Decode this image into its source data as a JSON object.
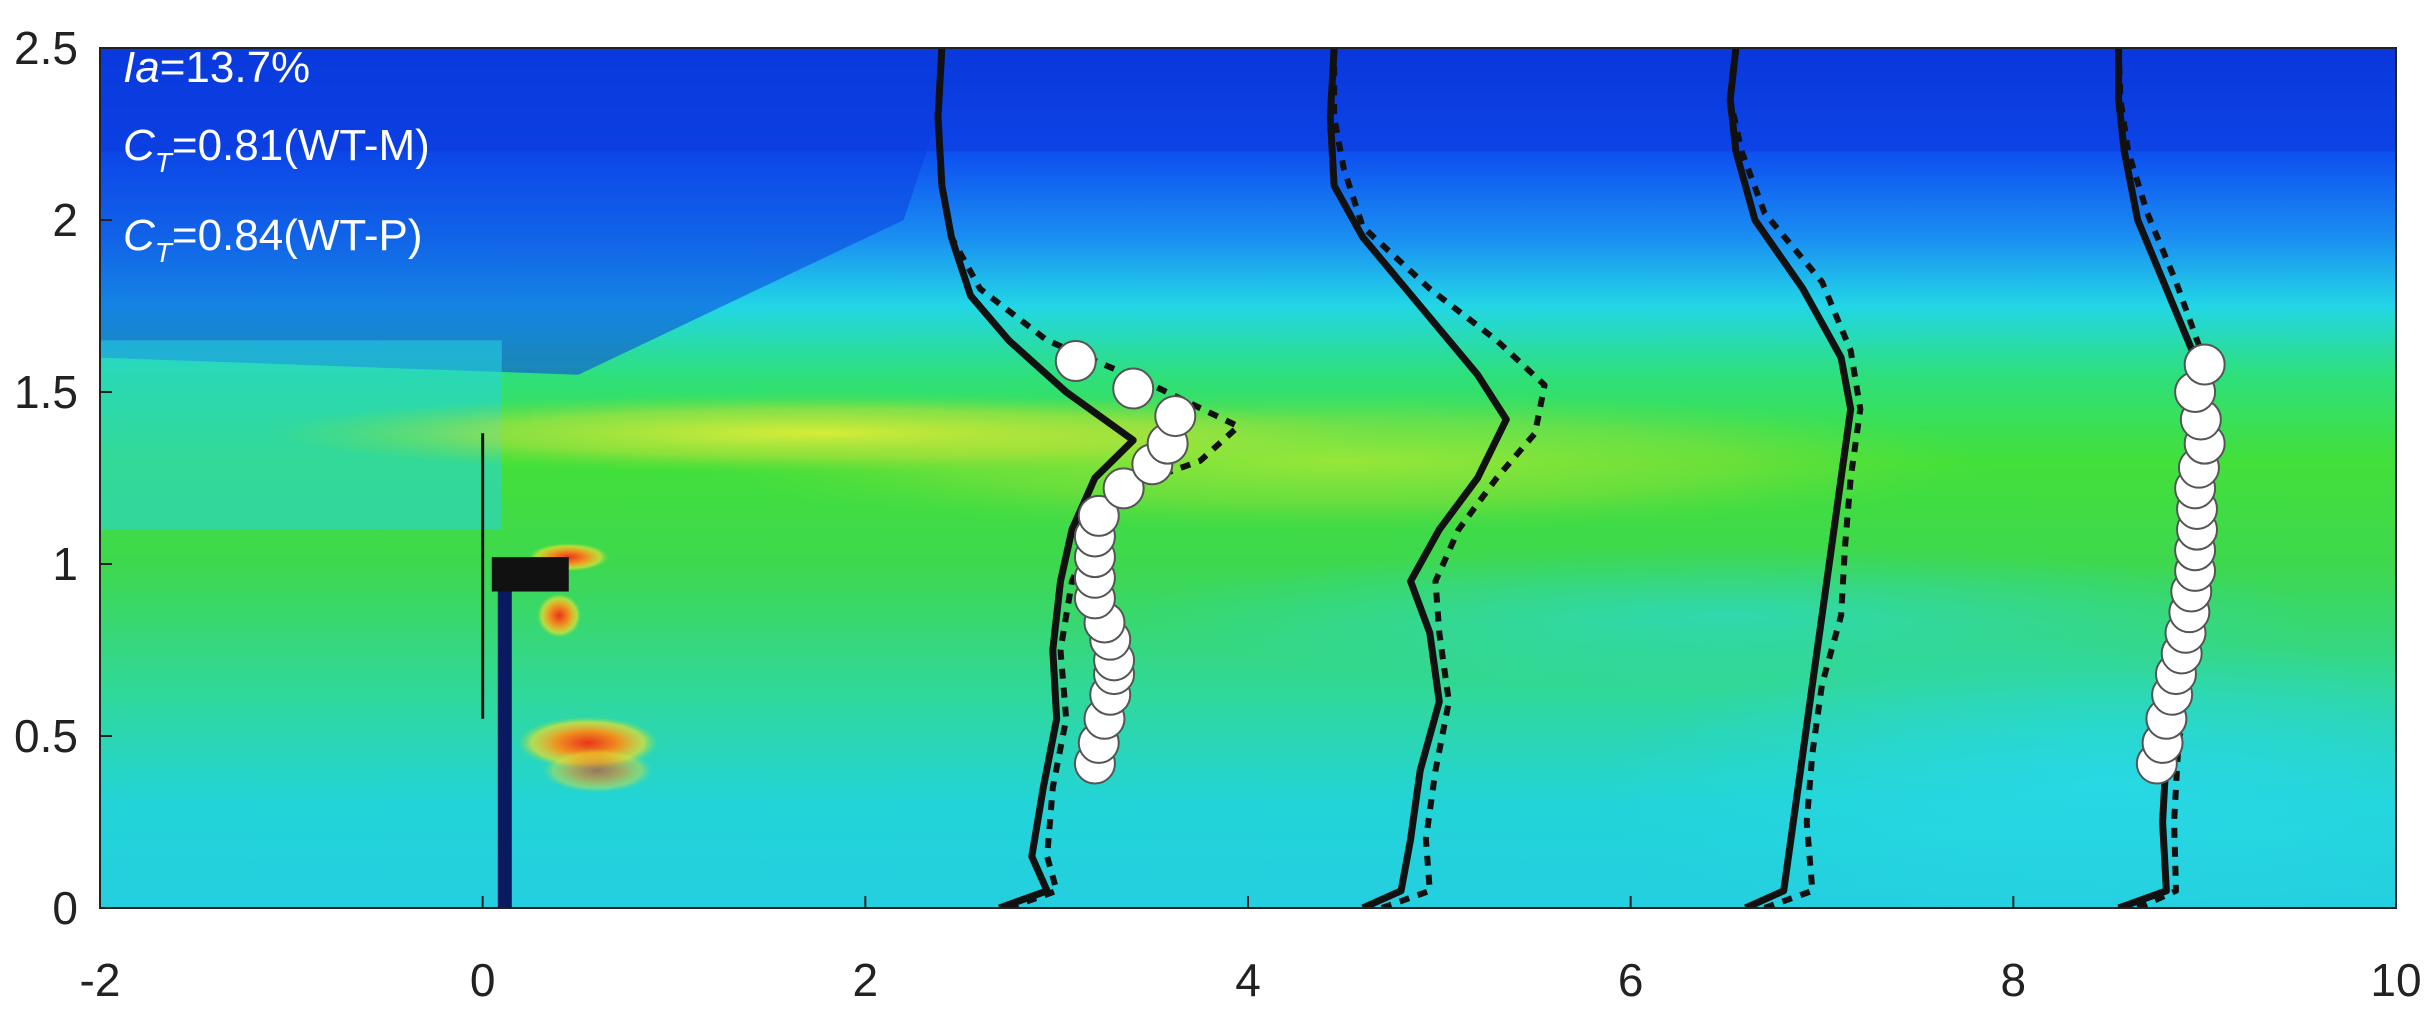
{
  "chart_data": {
    "type": "heatmap",
    "xlim": [
      -2,
      10
    ],
    "ylim": [
      0,
      2.5
    ],
    "x_ticks": [
      -2,
      0,
      2,
      4,
      6,
      8,
      10
    ],
    "y_ticks": [
      0,
      0.5,
      1,
      1.5,
      2,
      2.5
    ],
    "x_tick_labels": [
      "-2",
      "0",
      "2",
      "4",
      "6",
      "8",
      "10"
    ],
    "y_tick_labels": [
      "0",
      "0.5",
      "1",
      "1.5",
      "2",
      "2.5"
    ],
    "annotations": {
      "ia_symbol": "Ia",
      "ia_value": "=13.7%",
      "ct_symbol": "C",
      "ct_subscript": "T",
      "ct1_value": "=0.81(WT-M)",
      "ct2_value": "=0.84(WT-P)"
    },
    "colors": {
      "field_low": "#0b3fe0",
      "field_cyan": "#22d8e8",
      "field_green": "#1ed84a",
      "field_yellow": "#d8e430",
      "field_red": "#e83a1a",
      "line": "#111111",
      "marker_fill": "#ffffff",
      "marker_edge": "#555555"
    },
    "turbine": {
      "x": 0.1,
      "hub_height": 0.97,
      "tip_top": 1.38
    },
    "profiles": [
      {
        "baseline_x": 2,
        "solid": [
          [
            2.7,
            0
          ],
          [
            2.95,
            0.05
          ],
          [
            2.87,
            0.15
          ],
          [
            2.93,
            0.35
          ],
          [
            3.0,
            0.55
          ],
          [
            2.98,
            0.75
          ],
          [
            3.02,
            0.95
          ],
          [
            3.08,
            1.1
          ],
          [
            3.2,
            1.25
          ],
          [
            3.4,
            1.36
          ],
          [
            3.05,
            1.5
          ],
          [
            2.75,
            1.65
          ],
          [
            2.55,
            1.78
          ],
          [
            2.45,
            1.95
          ],
          [
            2.4,
            2.1
          ],
          [
            2.38,
            2.3
          ],
          [
            2.4,
            2.5
          ]
        ],
        "dashed": [
          [
            2.75,
            0
          ],
          [
            3.0,
            0.05
          ],
          [
            2.95,
            0.15
          ],
          [
            2.98,
            0.35
          ],
          [
            3.05,
            0.55
          ],
          [
            3.02,
            0.75
          ],
          [
            3.08,
            0.95
          ],
          [
            3.2,
            1.1
          ],
          [
            3.35,
            1.22
          ],
          [
            3.75,
            1.3
          ],
          [
            3.95,
            1.4
          ],
          [
            3.5,
            1.52
          ],
          [
            2.95,
            1.65
          ],
          [
            2.6,
            1.8
          ],
          [
            2.45,
            1.95
          ],
          [
            2.4,
            2.1
          ],
          [
            2.38,
            2.3
          ],
          [
            2.4,
            2.5
          ]
        ],
        "markers": [
          [
            3.2,
            0.42
          ],
          [
            3.22,
            0.48
          ],
          [
            3.25,
            0.55
          ],
          [
            3.28,
            0.62
          ],
          [
            3.3,
            0.68
          ],
          [
            3.3,
            0.72
          ],
          [
            3.28,
            0.78
          ],
          [
            3.25,
            0.83
          ],
          [
            3.2,
            0.9
          ],
          [
            3.2,
            0.96
          ],
          [
            3.2,
            1.02
          ],
          [
            3.2,
            1.08
          ],
          [
            3.22,
            1.14
          ],
          [
            3.35,
            1.22
          ],
          [
            3.5,
            1.29
          ],
          [
            3.58,
            1.35
          ],
          [
            3.62,
            1.43
          ],
          [
            3.4,
            1.51
          ],
          [
            3.1,
            1.59
          ]
        ]
      },
      {
        "baseline_x": 4,
        "solid": [
          [
            4.6,
            0
          ],
          [
            4.8,
            0.05
          ],
          [
            4.85,
            0.2
          ],
          [
            4.9,
            0.4
          ],
          [
            5.0,
            0.6
          ],
          [
            4.95,
            0.8
          ],
          [
            4.85,
            0.95
          ],
          [
            5.0,
            1.1
          ],
          [
            5.2,
            1.25
          ],
          [
            5.35,
            1.42
          ],
          [
            5.2,
            1.55
          ],
          [
            4.9,
            1.75
          ],
          [
            4.6,
            1.95
          ],
          [
            4.45,
            2.1
          ],
          [
            4.43,
            2.3
          ],
          [
            4.45,
            2.5
          ]
        ],
        "dashed": [
          [
            4.7,
            0
          ],
          [
            4.95,
            0.05
          ],
          [
            4.93,
            0.2
          ],
          [
            4.98,
            0.4
          ],
          [
            5.05,
            0.6
          ],
          [
            5.0,
            0.8
          ],
          [
            4.98,
            0.95
          ],
          [
            5.1,
            1.1
          ],
          [
            5.3,
            1.25
          ],
          [
            5.5,
            1.38
          ],
          [
            5.55,
            1.52
          ],
          [
            5.3,
            1.65
          ],
          [
            4.95,
            1.8
          ],
          [
            4.6,
            1.98
          ],
          [
            4.5,
            2.15
          ],
          [
            4.45,
            2.3
          ],
          [
            4.45,
            2.5
          ]
        ],
        "markers": []
      },
      {
        "baseline_x": 6,
        "solid": [
          [
            6.6,
            0
          ],
          [
            6.8,
            0.05
          ],
          [
            6.85,
            0.25
          ],
          [
            6.9,
            0.45
          ],
          [
            6.95,
            0.65
          ],
          [
            7.0,
            0.85
          ],
          [
            7.05,
            1.05
          ],
          [
            7.1,
            1.25
          ],
          [
            7.15,
            1.45
          ],
          [
            7.1,
            1.6
          ],
          [
            6.9,
            1.8
          ],
          [
            6.65,
            2.0
          ],
          [
            6.55,
            2.2
          ],
          [
            6.52,
            2.35
          ],
          [
            6.55,
            2.5
          ]
        ],
        "dashed": [
          [
            6.7,
            0
          ],
          [
            6.95,
            0.05
          ],
          [
            6.92,
            0.25
          ],
          [
            6.95,
            0.45
          ],
          [
            7.0,
            0.65
          ],
          [
            7.1,
            0.85
          ],
          [
            7.12,
            1.05
          ],
          [
            7.15,
            1.25
          ],
          [
            7.2,
            1.45
          ],
          [
            7.15,
            1.62
          ],
          [
            7.0,
            1.82
          ],
          [
            6.7,
            2.02
          ],
          [
            6.58,
            2.2
          ],
          [
            6.52,
            2.35
          ],
          [
            6.55,
            2.5
          ]
        ],
        "markers": []
      },
      {
        "baseline_x": 8,
        "solid": [
          [
            8.55,
            0
          ],
          [
            8.8,
            0.05
          ],
          [
            8.78,
            0.25
          ],
          [
            8.8,
            0.45
          ],
          [
            8.85,
            0.65
          ],
          [
            8.9,
            0.85
          ],
          [
            8.95,
            1.05
          ],
          [
            8.98,
            1.25
          ],
          [
            9.0,
            1.45
          ],
          [
            8.95,
            1.6
          ],
          [
            8.8,
            1.8
          ],
          [
            8.65,
            2.0
          ],
          [
            8.58,
            2.2
          ],
          [
            8.55,
            2.35
          ],
          [
            8.55,
            2.5
          ]
        ],
        "dashed": [
          [
            8.65,
            0
          ],
          [
            8.85,
            0.05
          ],
          [
            8.84,
            0.25
          ],
          [
            8.86,
            0.45
          ],
          [
            8.9,
            0.65
          ],
          [
            8.95,
            0.85
          ],
          [
            9.0,
            1.05
          ],
          [
            9.0,
            1.25
          ],
          [
            9.02,
            1.45
          ],
          [
            8.98,
            1.62
          ],
          [
            8.85,
            1.82
          ],
          [
            8.7,
            2.02
          ],
          [
            8.6,
            2.2
          ],
          [
            8.56,
            2.35
          ],
          [
            8.55,
            2.5
          ]
        ],
        "markers": [
          [
            8.75,
            0.42
          ],
          [
            8.78,
            0.48
          ],
          [
            8.8,
            0.55
          ],
          [
            8.83,
            0.62
          ],
          [
            8.85,
            0.68
          ],
          [
            8.88,
            0.74
          ],
          [
            8.9,
            0.8
          ],
          [
            8.92,
            0.86
          ],
          [
            8.93,
            0.92
          ],
          [
            8.95,
            0.98
          ],
          [
            8.95,
            1.04
          ],
          [
            8.96,
            1.1
          ],
          [
            8.96,
            1.16
          ],
          [
            8.95,
            1.22
          ],
          [
            8.97,
            1.28
          ],
          [
            9.0,
            1.35
          ],
          [
            8.98,
            1.42
          ],
          [
            8.95,
            1.5
          ],
          [
            9.0,
            1.58
          ]
        ]
      }
    ]
  }
}
